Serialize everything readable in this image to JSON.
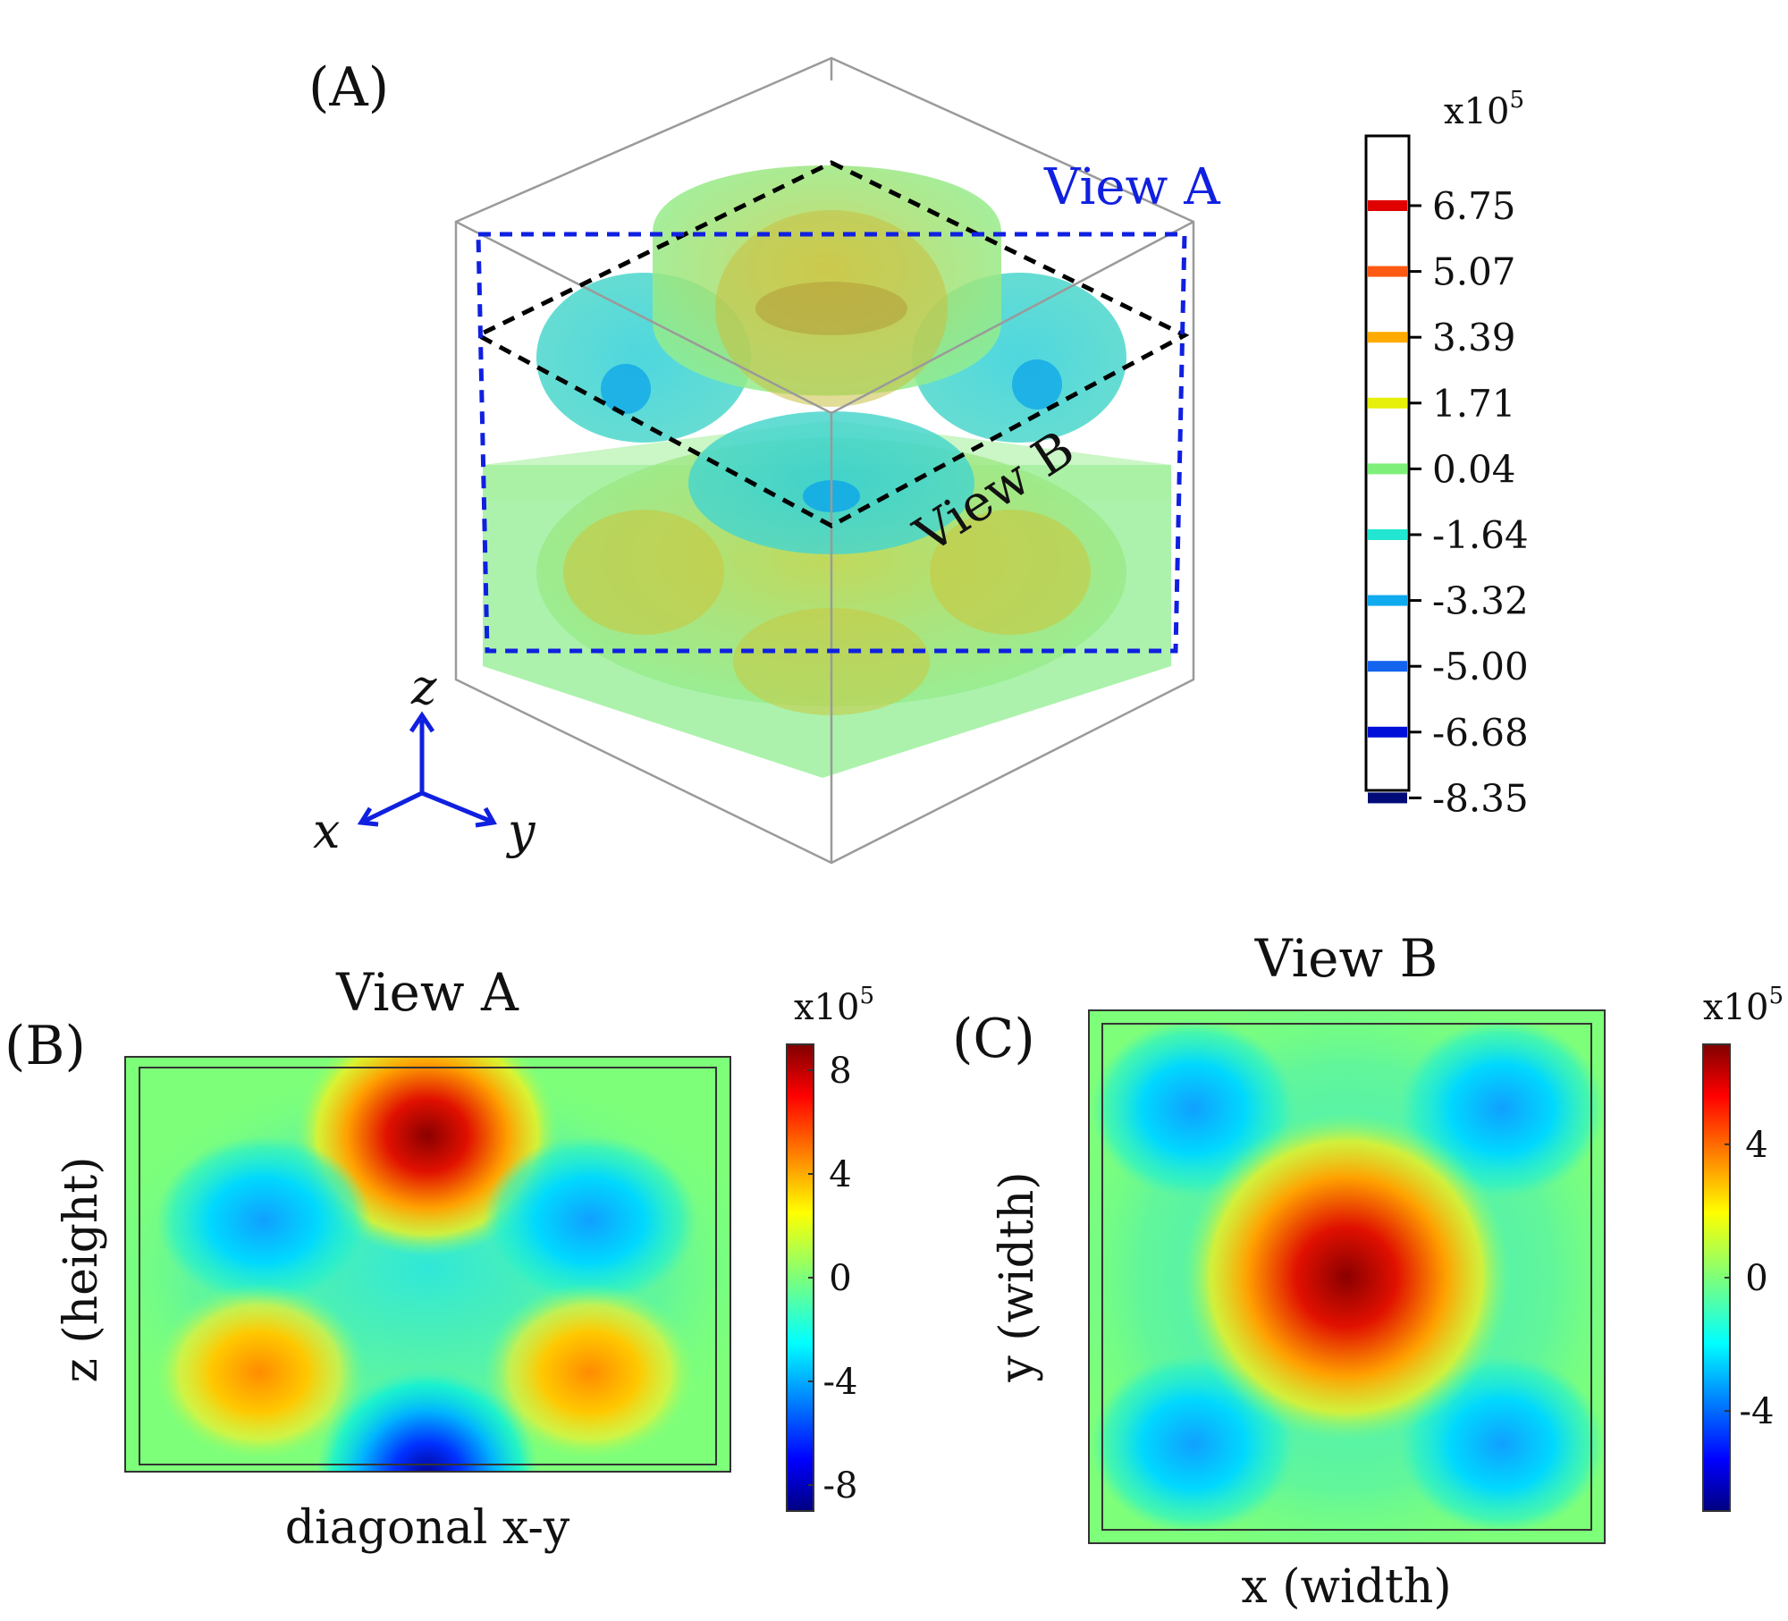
{
  "panel_a": {
    "label": "(A)",
    "view_a_label": "View A",
    "view_b_label": "View B",
    "axes": {
      "z": "z",
      "x": "x",
      "y": "y"
    },
    "colorbar": {
      "exponent_base": "x10",
      "exponent_power": "5",
      "levels": [
        {
          "value": "6.75",
          "color": "#e00000"
        },
        {
          "value": "5.07",
          "color": "#ff5a14"
        },
        {
          "value": "3.39",
          "color": "#ffaa00"
        },
        {
          "value": "1.71",
          "color": "#e6f00a"
        },
        {
          "value": "0.04",
          "color": "#7ef07a"
        },
        {
          "value": "-1.64",
          "color": "#22e6d2"
        },
        {
          "value": "-3.32",
          "color": "#10aaee"
        },
        {
          "value": "-5.00",
          "color": "#1464ee"
        },
        {
          "value": "-6.68",
          "color": "#0010d8"
        },
        {
          "value": "-8.35",
          "color": "#000a78"
        }
      ]
    },
    "colors": {
      "view_a_frame": "#1020e0",
      "view_b_frame": "#000000",
      "axis_arrows": "#1020e0"
    }
  },
  "panel_b": {
    "label": "(B)",
    "title": "View A",
    "xlabel": "diagonal x-y",
    "ylabel": "z (height)",
    "colorbar": {
      "exponent_base": "x10",
      "exponent_power": "5",
      "range": [
        -9,
        9
      ],
      "ticks": [
        8,
        4,
        0,
        -4,
        -8
      ]
    }
  },
  "panel_c": {
    "label": "(C)",
    "title": "View B",
    "xlabel": "x (width)",
    "ylabel": "y (width)",
    "colorbar": {
      "exponent_base": "x10",
      "exponent_power": "5",
      "range": [
        -7,
        7
      ],
      "ticks": [
        4,
        0,
        -4
      ]
    }
  }
}
